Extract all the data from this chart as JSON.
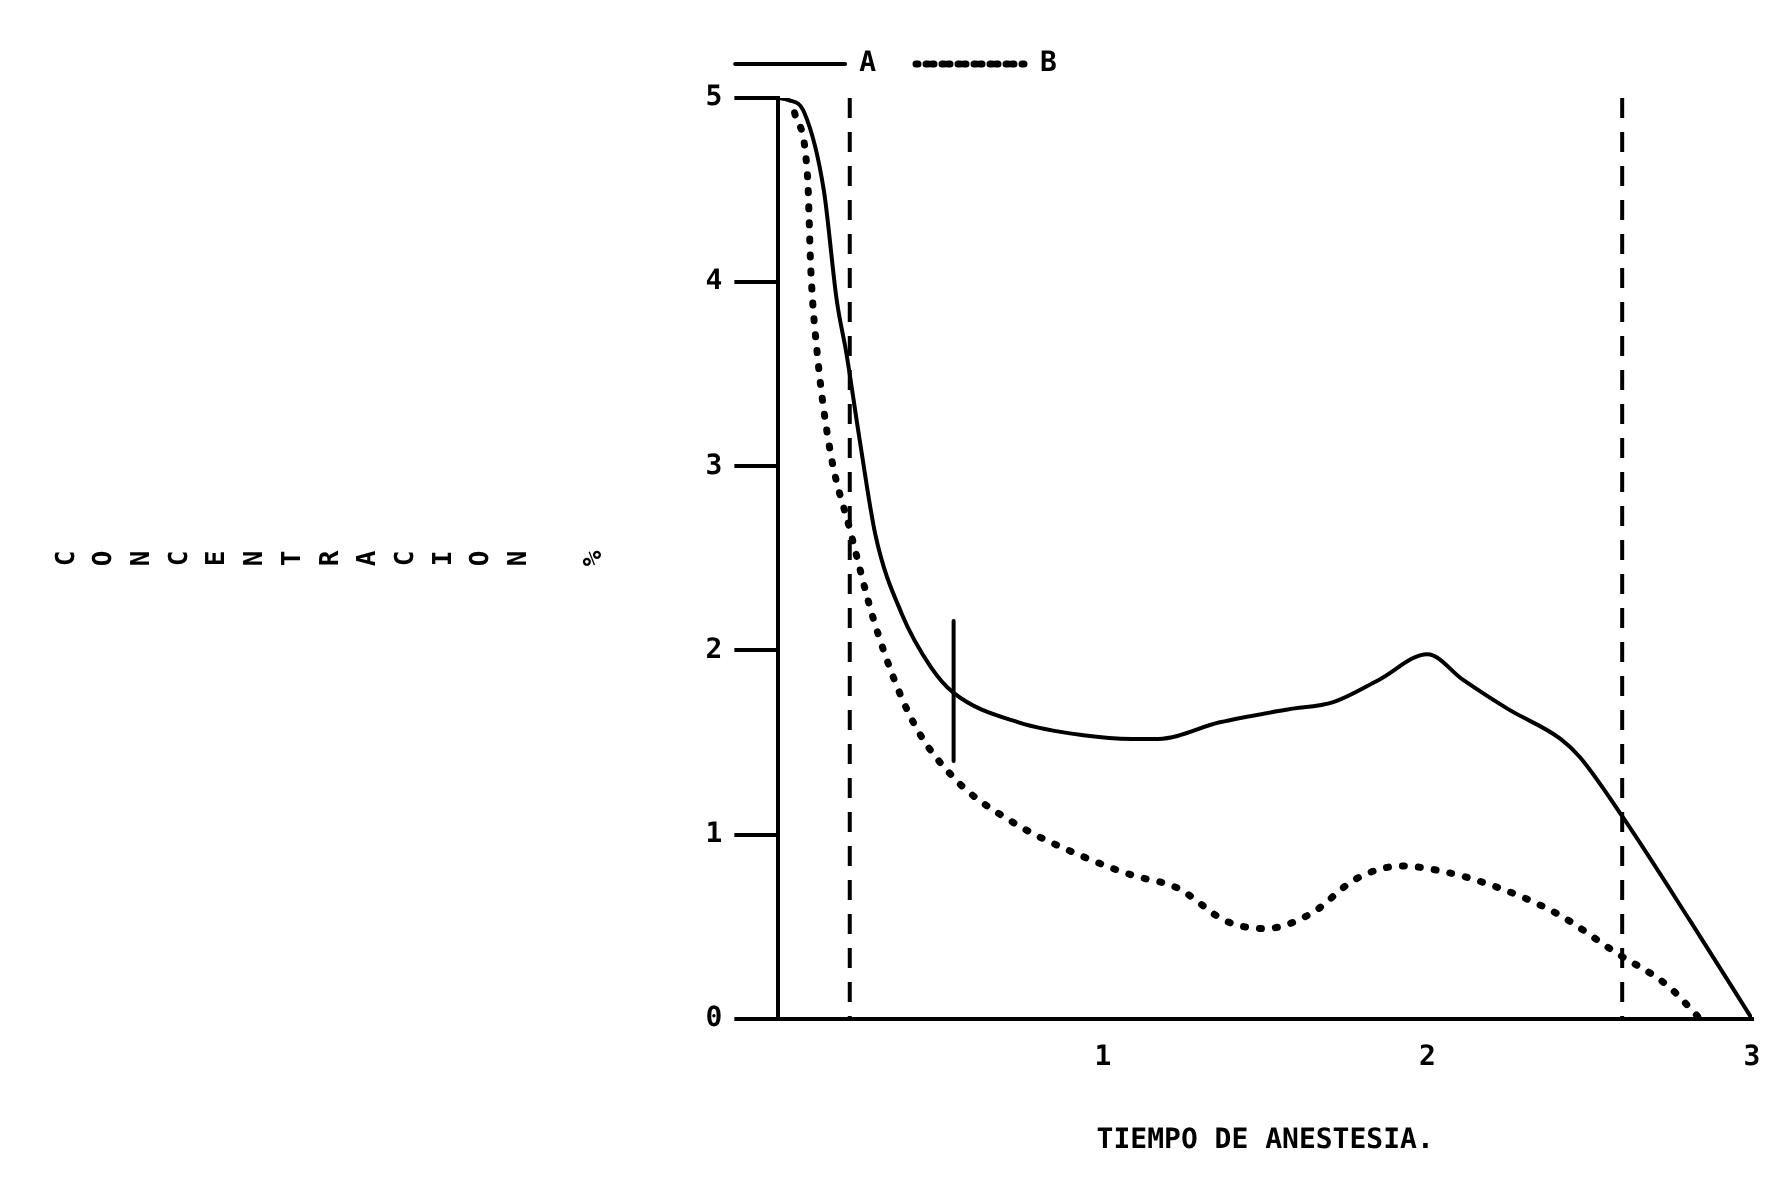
{
  "chart_data": {
    "type": "line",
    "xlabel": "TIEMPO DE ANESTESIA.",
    "ylabel": "CONCENTRACION %",
    "xlim": [
      0,
      3
    ],
    "xticks": [
      1,
      2,
      3
    ],
    "ylim": [
      0,
      5
    ],
    "yticks": [
      0,
      1,
      2,
      3,
      4,
      5
    ],
    "grid": false,
    "legend": "top",
    "marker": "none",
    "series": [
      {
        "name": "A",
        "color": "#000000",
        "line_style": "solid",
        "x": [
          0,
          0.03,
          0.08,
          0.14,
          0.18,
          0.21,
          0.25,
          0.3,
          0.38,
          0.47,
          0.54,
          0.74,
          0.94,
          1.09,
          1.17,
          1.36,
          1.57,
          1.71,
          1.85,
          2.0,
          2.11,
          2.25,
          2.41,
          2.47,
          2.6,
          2.81,
          3.0
        ],
        "values": [
          5.0,
          4.99,
          4.92,
          4.5,
          3.9,
          3.61,
          3.15,
          2.62,
          2.2,
          1.91,
          1.77,
          1.61,
          1.54,
          1.52,
          1.52,
          1.61,
          1.68,
          1.72,
          1.84,
          1.98,
          1.84,
          1.68,
          1.52,
          1.42,
          1.1,
          0.53,
          0
        ]
      },
      {
        "name": "B",
        "color": "#000000",
        "line_style": "dotted",
        "x": [
          0.05,
          0.09,
          0.1,
          0.12,
          0.16,
          0.22,
          0.3,
          0.41,
          0.54,
          0.72,
          0.94,
          1.09,
          1.23,
          1.38,
          1.5,
          1.64,
          1.78,
          1.92,
          2.02,
          2.19,
          2.4,
          2.58,
          2.74,
          2.84
        ],
        "values": [
          4.92,
          4.57,
          4.07,
          3.61,
          3.08,
          2.66,
          2.13,
          1.63,
          1.31,
          1.07,
          0.88,
          0.78,
          0.71,
          0.53,
          0.49,
          0.57,
          0.76,
          0.83,
          0.81,
          0.73,
          0.57,
          0.36,
          0.18,
          0
        ]
      },
      {
        "type": "line",
        "color": "#000000",
        "line_style": "solid",
        "x": [
          0.54,
          0.54
        ],
        "values": [
          1.4,
          2.16
        ]
      }
    ],
    "ref_lines": [
      {
        "axis": "x",
        "value": 0.22,
        "line_style": "dashed",
        "color": "#000000"
      },
      {
        "axis": "x",
        "value": 2.6,
        "line_style": "dashed",
        "color": "#000000"
      }
    ]
  }
}
